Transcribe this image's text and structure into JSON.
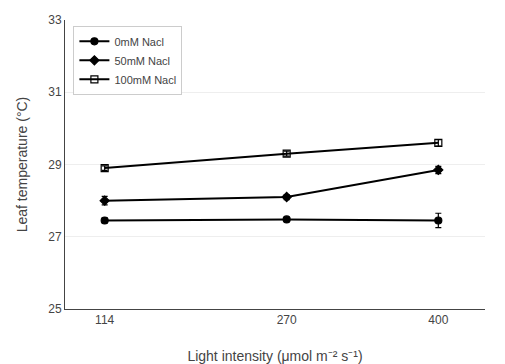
{
  "chart_data": {
    "type": "line",
    "x": [
      114,
      270,
      400
    ],
    "series": [
      {
        "name": "0mM Nacl",
        "color": "#000000",
        "marker": "circle",
        "values": [
          27.45,
          27.48,
          27.45
        ],
        "errors": [
          0.07,
          0.06,
          0.2
        ]
      },
      {
        "name": "50mM Nacl",
        "color": "#000000",
        "marker": "diamond",
        "values": [
          28.0,
          28.1,
          28.85
        ],
        "errors": [
          0.12,
          0.07,
          0.1
        ]
      },
      {
        "name": "100mM Nacl",
        "color": "#000000",
        "marker": "square-open",
        "values": [
          28.9,
          29.3,
          29.6
        ],
        "errors": [
          0.06,
          0.07,
          0.09
        ]
      }
    ],
    "xlabel": "Light intensity (μmol m⁻² s⁻¹)",
    "ylabel": "Leaf temperature (°C)",
    "xlim": [
      80,
      440
    ],
    "xticks": [
      114,
      270,
      400
    ],
    "ylim": [
      25,
      33
    ],
    "yticks": [
      25,
      27,
      29,
      31,
      33
    ],
    "grid": true,
    "legend": "upper left"
  }
}
